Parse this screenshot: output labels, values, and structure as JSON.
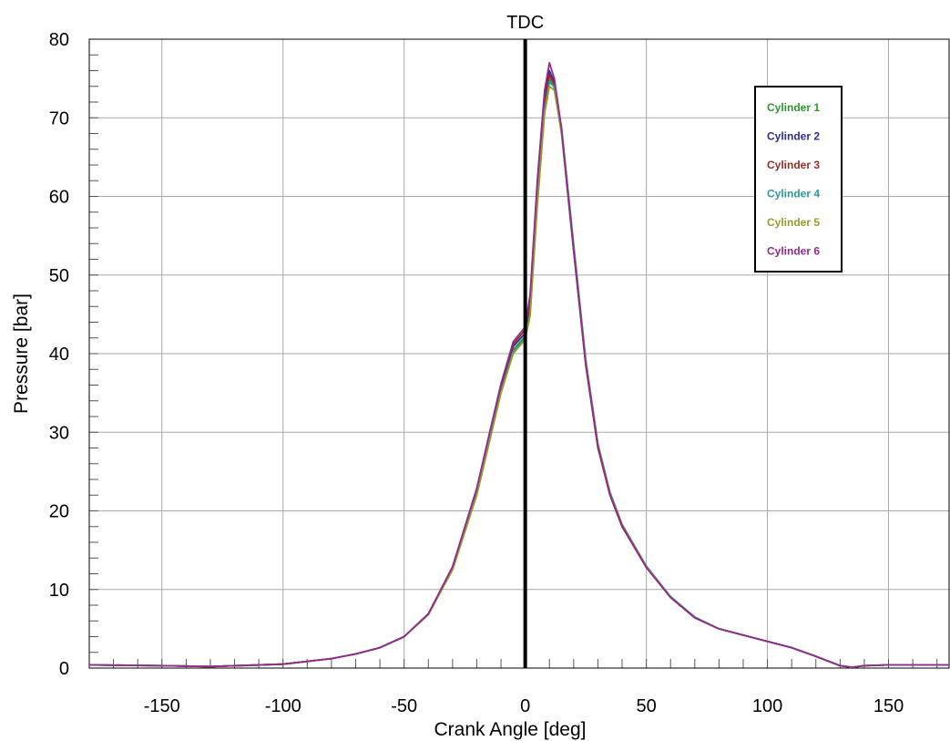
{
  "chart_data": {
    "type": "line",
    "title": "",
    "xlabel": "Crank Angle [deg]",
    "ylabel": "Pressure [bar]",
    "xlim": [
      -180,
      175
    ],
    "ylim": [
      0,
      80
    ],
    "x_ticks": [
      -150,
      -100,
      -50,
      0,
      50,
      100,
      150
    ],
    "y_ticks": [
      0,
      10,
      20,
      30,
      40,
      50,
      60,
      70,
      80
    ],
    "grid": true,
    "legend_position": "top-right",
    "annotation": {
      "label": "TDC",
      "x": 0,
      "color": "#000000"
    },
    "series": [
      {
        "name": "Cylinder 1",
        "color": "#2e9a2e",
        "x": [
          -180,
          -150,
          -130,
          -100,
          -80,
          -70,
          -60,
          -50,
          -40,
          -30,
          -20,
          -15,
          -10,
          -5,
          0,
          2,
          5,
          8,
          10,
          12,
          15,
          20,
          25,
          30,
          35,
          40,
          50,
          60,
          70,
          80,
          100,
          110,
          120,
          130,
          135,
          140,
          150,
          175
        ],
        "y": [
          0.4,
          0.3,
          0.2,
          0.5,
          1.2,
          1.8,
          2.6,
          4.0,
          6.9,
          12.8,
          22.5,
          29.0,
          35.5,
          40.5,
          42.2,
          45.5,
          60.0,
          71.5,
          75.0,
          73.8,
          68.0,
          53.0,
          38.5,
          28.0,
          22.0,
          18.0,
          12.8,
          9.0,
          6.4,
          5.0,
          3.4,
          2.6,
          1.5,
          0.3,
          0.1,
          0.3,
          0.4,
          0.4
        ]
      },
      {
        "name": "Cylinder 2",
        "color": "#2c2c9a",
        "x": [
          -180,
          -150,
          -130,
          -100,
          -80,
          -70,
          -60,
          -50,
          -40,
          -30,
          -20,
          -15,
          -10,
          -5,
          0,
          2,
          5,
          8,
          10,
          12,
          15,
          20,
          25,
          30,
          35,
          40,
          50,
          60,
          70,
          80,
          100,
          110,
          120,
          130,
          135,
          140,
          150,
          175
        ],
        "y": [
          0.4,
          0.3,
          0.2,
          0.5,
          1.2,
          1.8,
          2.6,
          4.0,
          6.9,
          12.8,
          22.7,
          29.3,
          35.9,
          40.9,
          42.6,
          46.0,
          60.5,
          72.5,
          76.0,
          74.5,
          68.6,
          53.4,
          38.8,
          28.2,
          22.1,
          18.1,
          12.9,
          9.0,
          6.4,
          5.0,
          3.4,
          2.6,
          1.5,
          0.3,
          0.1,
          0.3,
          0.4,
          0.4
        ]
      },
      {
        "name": "Cylinder 3",
        "color": "#9a2a2a",
        "x": [
          -180,
          -150,
          -130,
          -100,
          -80,
          -70,
          -60,
          -50,
          -40,
          -30,
          -20,
          -15,
          -10,
          -5,
          0,
          2,
          5,
          8,
          10,
          12,
          15,
          20,
          25,
          30,
          35,
          40,
          50,
          60,
          70,
          80,
          100,
          110,
          120,
          130,
          135,
          140,
          150,
          175
        ],
        "y": [
          0.4,
          0.3,
          0.2,
          0.5,
          1.2,
          1.8,
          2.6,
          4.0,
          6.9,
          12.9,
          22.8,
          29.4,
          36.0,
          41.2,
          43.0,
          46.2,
          60.8,
          72.0,
          75.5,
          74.2,
          68.3,
          53.2,
          38.6,
          28.1,
          22.0,
          18.0,
          12.8,
          9.0,
          6.4,
          5.0,
          3.4,
          2.6,
          1.5,
          0.3,
          0.1,
          0.3,
          0.4,
          0.4
        ]
      },
      {
        "name": "Cylinder 4",
        "color": "#2a9a9a",
        "x": [
          -180,
          -150,
          -130,
          -100,
          -80,
          -70,
          -60,
          -50,
          -40,
          -30,
          -20,
          -15,
          -10,
          -5,
          0,
          2,
          5,
          8,
          10,
          12,
          15,
          20,
          25,
          30,
          35,
          40,
          50,
          60,
          70,
          80,
          100,
          110,
          120,
          130,
          135,
          140,
          150,
          175
        ],
        "y": [
          0.4,
          0.3,
          0.2,
          0.5,
          1.2,
          1.8,
          2.6,
          4.0,
          6.8,
          12.6,
          22.2,
          28.7,
          35.2,
          40.3,
          42.0,
          45.0,
          59.0,
          71.0,
          74.5,
          74.0,
          68.8,
          54.0,
          39.3,
          28.6,
          22.4,
          18.3,
          13.0,
          9.1,
          6.5,
          5.0,
          3.4,
          2.6,
          1.5,
          0.3,
          0.1,
          0.3,
          0.4,
          0.4
        ]
      },
      {
        "name": "Cylinder 5",
        "color": "#9a9a2a",
        "x": [
          -180,
          -150,
          -130,
          -100,
          -80,
          -70,
          -60,
          -50,
          -40,
          -30,
          -20,
          -15,
          -10,
          -5,
          0,
          2,
          5,
          8,
          10,
          12,
          15,
          20,
          25,
          30,
          35,
          40,
          50,
          60,
          70,
          80,
          100,
          110,
          120,
          130,
          135,
          140,
          150,
          175
        ],
        "y": [
          0.4,
          0.3,
          0.2,
          0.5,
          1.2,
          1.8,
          2.6,
          4.0,
          6.8,
          12.5,
          22.0,
          28.5,
          35.0,
          40.0,
          41.8,
          44.8,
          58.8,
          70.5,
          74.0,
          73.5,
          68.2,
          53.5,
          39.0,
          28.4,
          22.2,
          18.2,
          12.9,
          9.0,
          6.4,
          5.0,
          3.4,
          2.6,
          1.5,
          0.3,
          0.1,
          0.3,
          0.4,
          0.4
        ]
      },
      {
        "name": "Cylinder 6",
        "color": "#922a92",
        "x": [
          -180,
          -150,
          -130,
          -100,
          -80,
          -70,
          -60,
          -50,
          -40,
          -30,
          -20,
          -15,
          -10,
          -5,
          0,
          2,
          5,
          8,
          10,
          12,
          15,
          20,
          25,
          30,
          35,
          40,
          50,
          60,
          70,
          80,
          100,
          110,
          120,
          130,
          135,
          140,
          150,
          175
        ],
        "y": [
          0.4,
          0.3,
          0.2,
          0.5,
          1.2,
          1.8,
          2.6,
          4.0,
          6.9,
          12.9,
          22.9,
          29.6,
          36.2,
          41.5,
          43.4,
          47.5,
          62.0,
          73.5,
          77.0,
          75.0,
          68.6,
          53.3,
          38.7,
          28.2,
          22.1,
          18.1,
          12.8,
          9.0,
          6.4,
          5.0,
          3.4,
          2.6,
          1.5,
          0.3,
          0.1,
          0.3,
          0.4,
          0.4
        ]
      }
    ]
  }
}
